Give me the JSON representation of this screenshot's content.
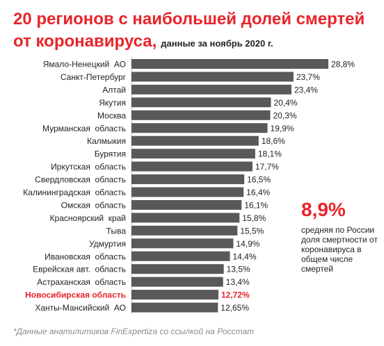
{
  "title": {
    "line1": "20 регионов с наибольшей долей смертей",
    "line2": "от коронавируса,",
    "subtitle": "данные за ноябрь 2020 г."
  },
  "highlight": {
    "value": "8,9%",
    "text": "средняя по России доля смертности от коронавируса в общем числе смертей"
  },
  "source": "*Данные анатилитиков FinExpertiza со ссылкой на Росстат",
  "colors": {
    "bar": "#595959",
    "accent": "#e8242a",
    "text": "#222222"
  },
  "chart_data": {
    "type": "bar",
    "orientation": "horizontal",
    "categories": [
      "Ямало-Ненецкий  АО",
      "Санкт-Петербург",
      "Алтай",
      "Якутия",
      "Москва",
      "Мурманская  область",
      "Калмыкия",
      "Бурятия",
      "Иркутская  область",
      "Свердловская  область",
      "Калининградская  область",
      "Омская  область",
      "Красноярский  край",
      "Тыва",
      "Удмуртия",
      "Ивановская  область",
      "Еврейская авт.  область",
      "Астраханская  область",
      "Новосибирская область",
      "Ханты-Мансийский  АО"
    ],
    "values": [
      28.8,
      23.7,
      23.4,
      20.4,
      20.3,
      19.9,
      18.6,
      18.1,
      17.7,
      16.5,
      16.4,
      16.1,
      15.8,
      15.5,
      14.9,
      14.4,
      13.5,
      13.4,
      12.72,
      12.65
    ],
    "labels": [
      "28,8%",
      "23,7%",
      "23,4%",
      "20,4%",
      "20,3%",
      "19,9%",
      "18,6%",
      "18,1%",
      "17,7%",
      "16,5%",
      "16,4%",
      "16,1%",
      "15,8%",
      "15,5%",
      "14,9%",
      "14,4%",
      "13,5%",
      "13,4%",
      "12,72%",
      "12,65%"
    ],
    "highlighted_index": 18,
    "xlim": [
      0,
      28.8
    ]
  }
}
